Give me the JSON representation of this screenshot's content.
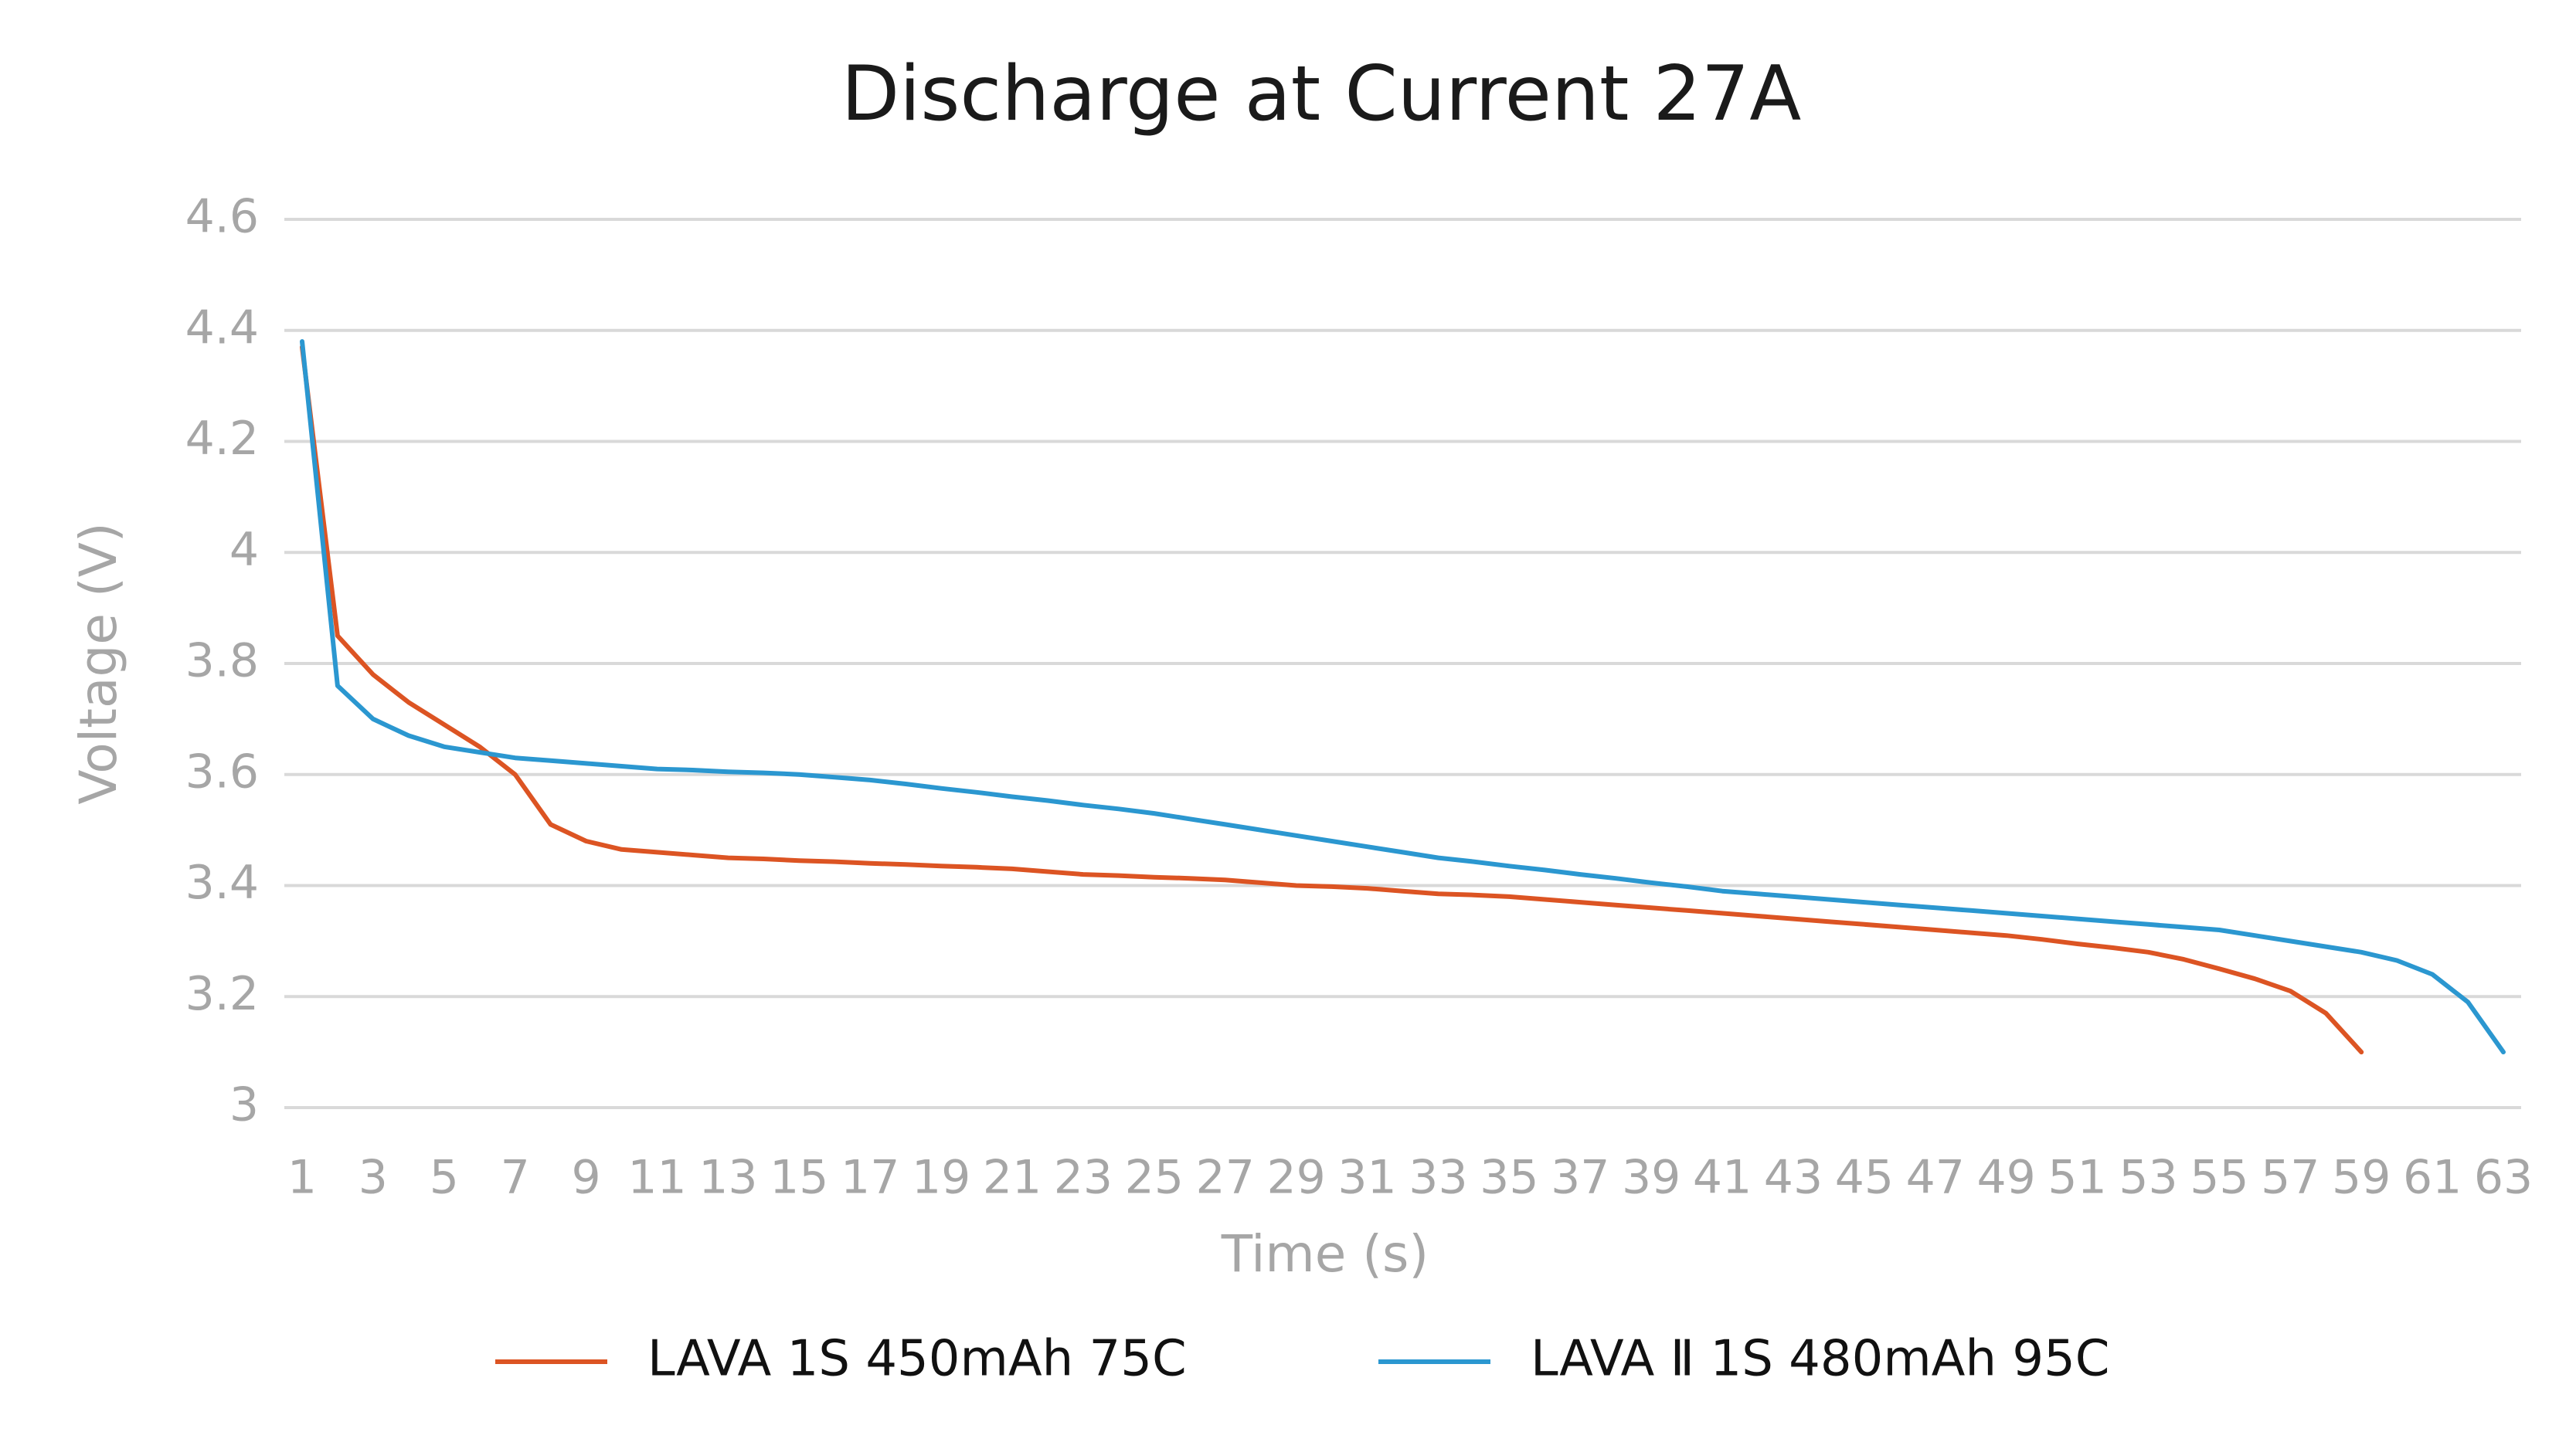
{
  "chart_data": {
    "type": "line",
    "title": "Discharge at Current 27A",
    "x_label": "Time (s)",
    "y_label": "Voltage (V)",
    "categories": [
      1,
      null,
      3,
      null,
      5,
      null,
      7,
      null,
      9,
      null,
      11,
      null,
      13,
      null,
      15,
      null,
      17,
      null,
      19,
      null,
      21,
      null,
      23,
      null,
      25,
      null,
      27,
      null,
      29,
      null,
      31,
      null,
      33,
      null,
      35,
      null,
      37,
      null,
      39,
      null,
      41,
      null,
      43,
      null,
      45,
      null,
      47,
      null,
      49,
      null,
      51,
      null,
      53,
      null,
      55,
      null,
      57,
      null,
      59,
      null,
      61,
      null,
      63
    ],
    "series": [
      {
        "name": "LAVA 1S 450mAh 75C",
        "color": "#dc5423",
        "values": [
          4.37,
          3.85,
          3.78,
          3.73,
          3.69,
          3.65,
          3.6,
          3.51,
          3.48,
          3.465,
          3.46,
          3.455,
          3.45,
          3.448,
          3.445,
          3.443,
          3.44,
          3.438,
          3.435,
          3.433,
          3.43,
          3.425,
          3.42,
          3.418,
          3.415,
          3.413,
          3.41,
          3.405,
          3.4,
          3.398,
          3.395,
          3.39,
          3.385,
          3.383,
          3.38,
          3.375,
          3.37,
          3.365,
          3.36,
          3.355,
          3.35,
          3.345,
          3.34,
          3.335,
          3.33,
          3.325,
          3.32,
          3.315,
          3.31,
          3.303,
          3.295,
          3.288,
          3.28,
          3.267,
          3.25,
          3.232,
          3.21,
          3.17,
          3.1,
          null,
          null,
          null,
          null
        ]
      },
      {
        "name": "LAVA Ⅱ 1S 480mAh 95C",
        "color": "#2b97d0",
        "values": [
          4.38,
          3.76,
          3.7,
          3.67,
          3.65,
          3.64,
          3.63,
          3.625,
          3.62,
          3.615,
          3.61,
          3.608,
          3.605,
          3.603,
          3.6,
          3.595,
          3.59,
          3.583,
          3.575,
          3.568,
          3.56,
          3.553,
          3.545,
          3.538,
          3.53,
          3.52,
          3.51,
          3.5,
          3.49,
          3.48,
          3.47,
          3.46,
          3.45,
          3.443,
          3.435,
          3.428,
          3.42,
          3.413,
          3.405,
          3.398,
          3.39,
          3.385,
          3.38,
          3.375,
          3.37,
          3.365,
          3.36,
          3.355,
          3.35,
          3.345,
          3.34,
          3.335,
          3.33,
          3.325,
          3.32,
          3.31,
          3.3,
          3.29,
          3.28,
          3.265,
          3.24,
          3.19,
          3.1
        ]
      }
    ],
    "ylim": [
      3,
      4.6
    ],
    "yticks": [
      3,
      3.2,
      3.4,
      3.6,
      3.8,
      4,
      4.2,
      4.4,
      4.6
    ],
    "grid": true,
    "legend": "bottom"
  }
}
